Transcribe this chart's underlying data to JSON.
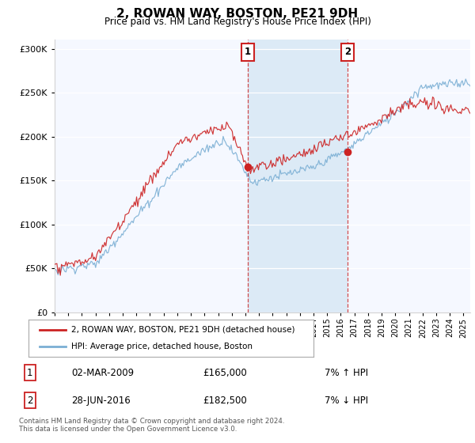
{
  "title": "2, ROWAN WAY, BOSTON, PE21 9DH",
  "subtitle": "Price paid vs. HM Land Registry's House Price Index (HPI)",
  "legend_line1": "2, ROWAN WAY, BOSTON, PE21 9DH (detached house)",
  "legend_line2": "HPI: Average price, detached house, Boston",
  "transaction1_date": "02-MAR-2009",
  "transaction1_price": "£165,000",
  "transaction1_hpi": "7% ↑ HPI",
  "transaction1_year": 2009.17,
  "transaction1_value": 165000,
  "transaction2_date": "28-JUN-2016",
  "transaction2_price": "£182,500",
  "transaction2_hpi": "7% ↓ HPI",
  "transaction2_year": 2016.5,
  "transaction2_value": 182500,
  "footnote": "Contains HM Land Registry data © Crown copyright and database right 2024.\nThis data is licensed under the Open Government Licence v3.0.",
  "hpi_color": "#7bafd4",
  "price_color": "#cc2222",
  "shade_color": "#d8e8f5",
  "background_color": "#f5f8ff",
  "ylim": [
    0,
    310000
  ],
  "xlim_start": 1995,
  "xlim_end": 2025.5
}
